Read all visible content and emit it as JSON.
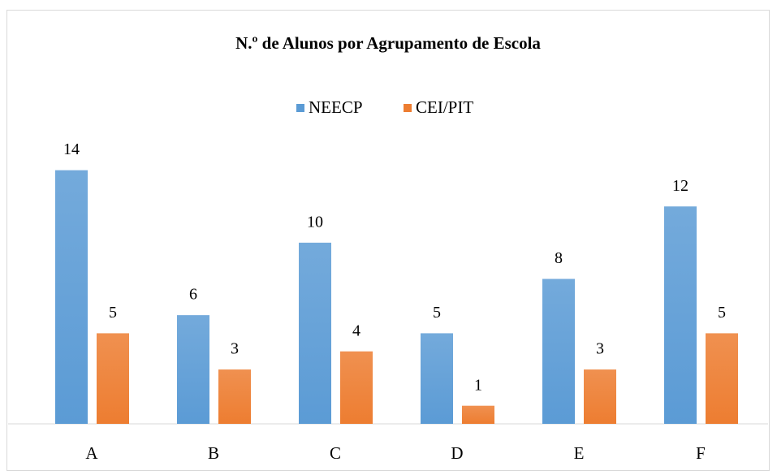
{
  "chart_data": {
    "type": "bar",
    "title": "N.º de Alunos por Agrupamento de Escola",
    "categories": [
      "A",
      "B",
      "C",
      "D",
      "E",
      "F"
    ],
    "series": [
      {
        "name": "NEECP",
        "color": "#5b9bd5",
        "values": [
          14,
          6,
          10,
          5,
          8,
          12
        ]
      },
      {
        "name": "CEI/PIT",
        "color": "#ed7d31",
        "values": [
          5,
          3,
          4,
          1,
          3,
          5
        ]
      }
    ],
    "ylim": [
      0,
      16
    ],
    "legend": "top"
  }
}
